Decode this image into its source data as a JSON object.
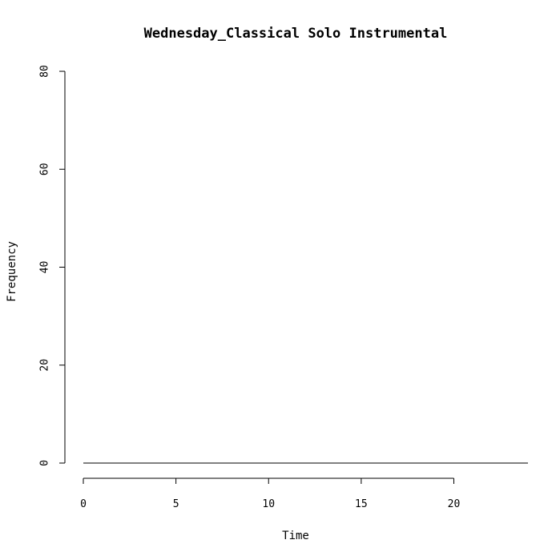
{
  "chart_data": {
    "type": "line",
    "title": "Wednesday_Classical Solo Instrumental",
    "xlabel": "Time",
    "ylabel": "Frequency",
    "xlim": [
      0,
      24
    ],
    "ylim": [
      0,
      80
    ],
    "x_ticks": [
      "0",
      "5",
      "10",
      "15",
      "20"
    ],
    "y_ticks": [
      "0",
      "20",
      "40",
      "60",
      "80"
    ],
    "grid": false,
    "legend": "none",
    "series": [
      {
        "x": [
          0,
          1,
          2,
          3,
          4,
          5,
          6,
          7,
          8,
          9,
          10,
          11,
          12,
          13,
          14,
          15,
          16,
          17,
          18,
          19,
          20,
          21,
          22,
          23,
          24
        ],
        "values": [
          0,
          0,
          0,
          0,
          0,
          0,
          0,
          0,
          0,
          0,
          0,
          0,
          0,
          0,
          0,
          0,
          0,
          0,
          0,
          0,
          0,
          0,
          0,
          0,
          0
        ]
      }
    ],
    "colors": {
      "line": "#000000",
      "axis": "#000000",
      "background": "#ffffff"
    }
  }
}
